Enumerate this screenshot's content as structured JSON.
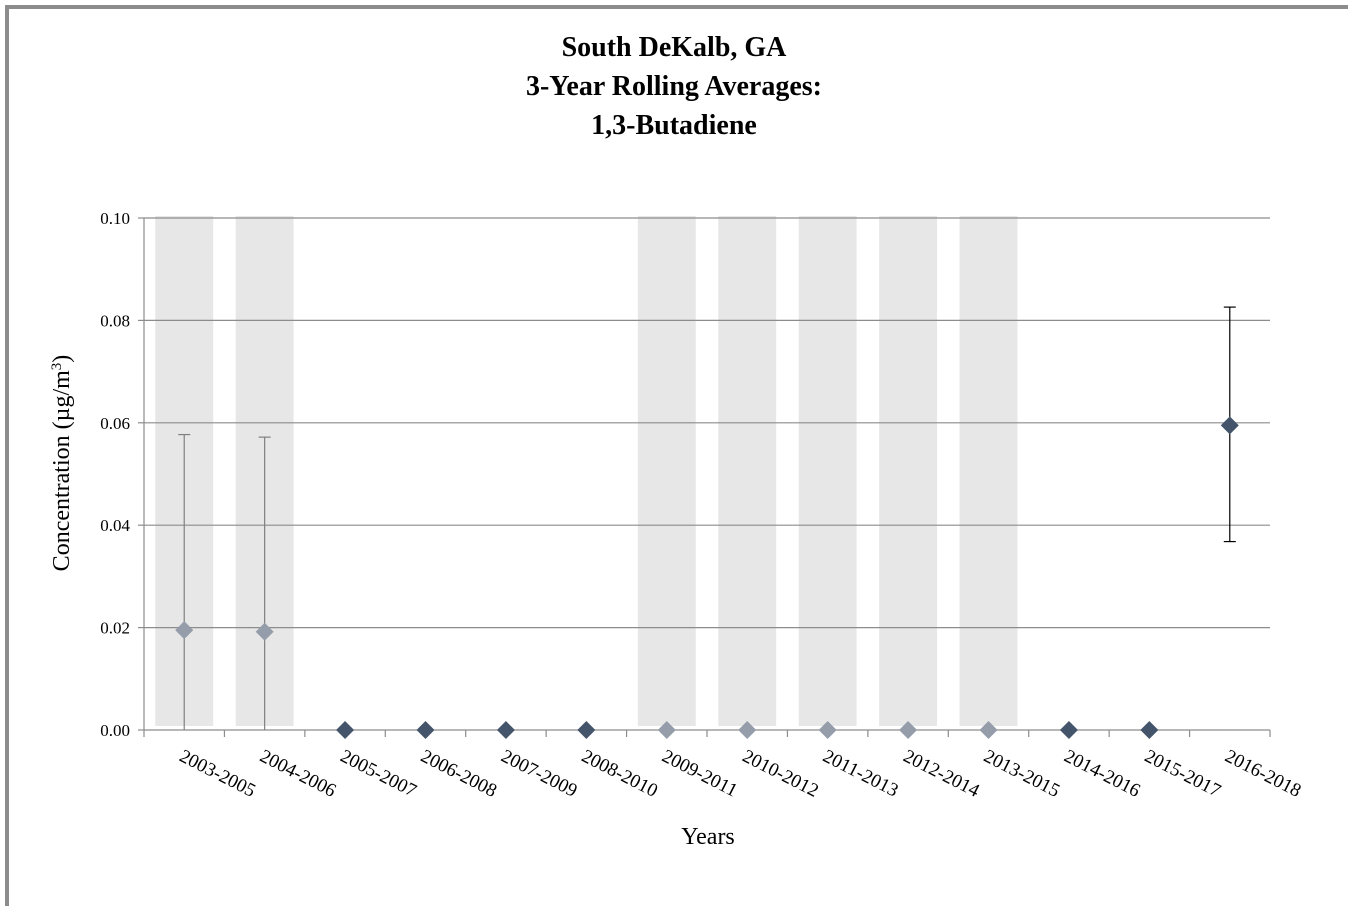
{
  "chart_data": {
    "type": "scatter",
    "title_lines": [
      "South DeKalb, GA",
      "3-Year Rolling Averages:",
      "1,3-Butadiene"
    ],
    "xlabel": "Years",
    "ylabel_prefix": "Concentration (µg/m",
    "ylabel_sup": "3",
    "ylabel_suffix": ")",
    "ylim": [
      0,
      0.1
    ],
    "yticks": [
      "0.00",
      "0.02",
      "0.04",
      "0.06",
      "0.08",
      "0.10"
    ],
    "grid": true,
    "categories": [
      "2003-2005",
      "2004-2006",
      "2005-2007",
      "2006-2008",
      "2007-2009",
      "2008-2010",
      "2009-2011",
      "2010-2012",
      "2011-2013",
      "2012-2014",
      "2013-2015",
      "2014-2016",
      "2015-2017",
      "2016-2018"
    ],
    "values": [
      0.0195,
      0.0192,
      0,
      0,
      0,
      0,
      0,
      0,
      0,
      0,
      0,
      0,
      0,
      0.0595
    ],
    "error_low": [
      0.0,
      0.0,
      null,
      null,
      null,
      null,
      null,
      null,
      null,
      null,
      null,
      null,
      null,
      0.0368
    ],
    "error_high": [
      0.0577,
      0.0572,
      null,
      null,
      null,
      null,
      null,
      null,
      null,
      null,
      null,
      null,
      null,
      0.0826
    ],
    "shaded_periods": [
      true,
      true,
      false,
      false,
      false,
      false,
      true,
      true,
      true,
      true,
      true,
      false,
      false,
      false
    ],
    "colors": {
      "marker": "#44546a",
      "marker_shaded": "#959daa",
      "shade": "#e7e7e7",
      "grid": "#8c8c8c",
      "error_bar": "#000000",
      "error_bar_shaded": "#7f7f7f"
    }
  }
}
